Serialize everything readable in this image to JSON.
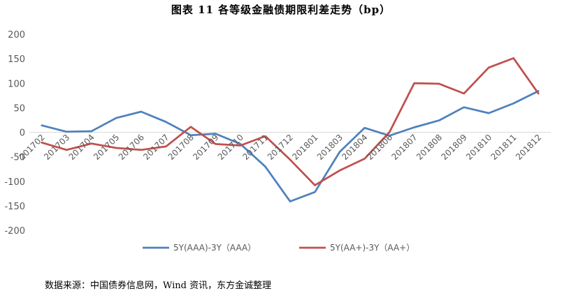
{
  "title": "图表 11   各等级金融债期限利差走势（bp）",
  "source": "数据来源：中国债券信息网，Wind 资讯，东方金诚整理",
  "chart_data": {
    "type": "line",
    "title": "图表 11   各等级金融债期限利差走势（bp）",
    "xlabel": "",
    "ylabel": "",
    "ylim": [
      -200,
      200
    ],
    "yticks": [
      200,
      150,
      100,
      50,
      0,
      -50,
      -100,
      -150,
      -200
    ],
    "grid": false,
    "legend": "bottom",
    "x": [
      "201702",
      "201703",
      "201704",
      "201705",
      "201706",
      "201707",
      "201708",
      "201709",
      "201710",
      "201711",
      "201712",
      "201801",
      "201803",
      "201804",
      "201806",
      "201807",
      "201808",
      "201809",
      "201810",
      "201811",
      "201812"
    ],
    "series": [
      {
        "name": "5Y(AAA)-3Y（AAA）",
        "color": "#4f81bd",
        "values": [
          14,
          1,
          2,
          29,
          42,
          21,
          -6,
          -3,
          -24,
          -70,
          -141,
          -122,
          -40,
          9,
          -7,
          10,
          24,
          51,
          39,
          59,
          84
        ]
      },
      {
        "name": "5Y(AA+)-3Y（AA+）",
        "color": "#c0504d",
        "values": [
          -21,
          -36,
          -23,
          -32,
          -36,
          -29,
          11,
          -24,
          -27,
          -8,
          -56,
          -108,
          -78,
          -54,
          0,
          100,
          99,
          79,
          132,
          151,
          79
        ]
      }
    ]
  }
}
